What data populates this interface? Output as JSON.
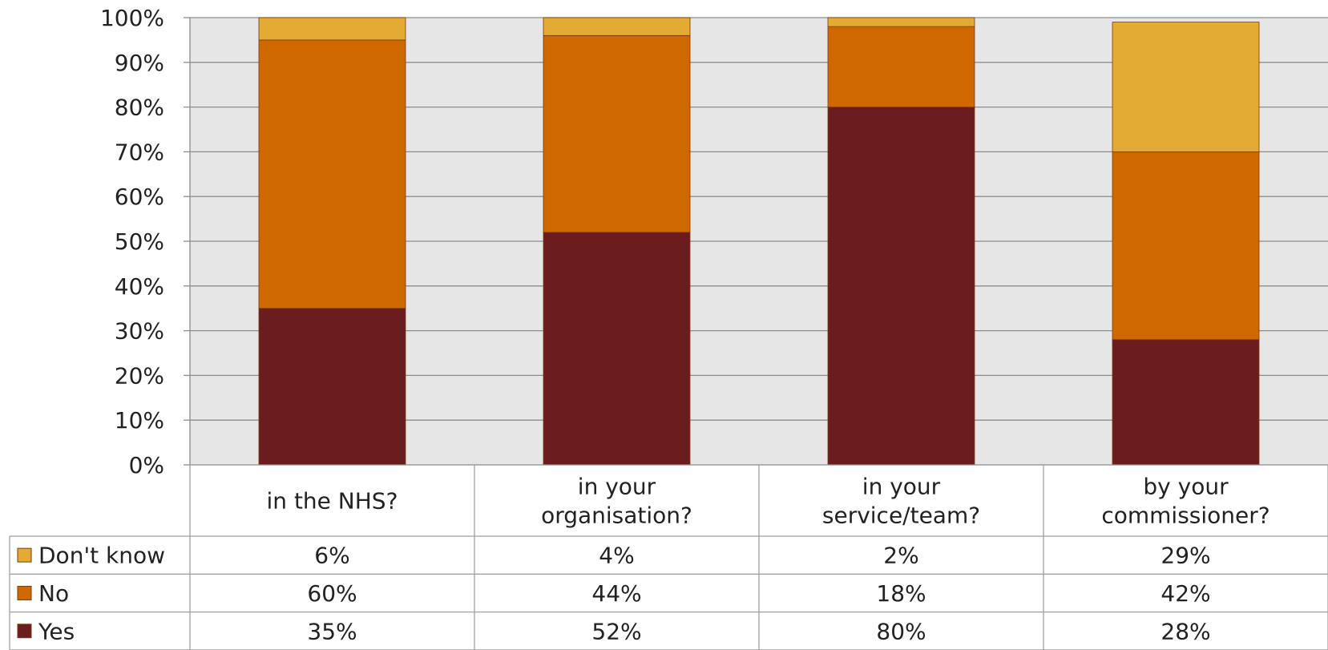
{
  "chart_data": {
    "type": "bar",
    "stacked": true,
    "percent_stacked": true,
    "categories": [
      [
        "in the NHS?"
      ],
      [
        "in your",
        "organisation?"
      ],
      [
        "in your",
        "service/team?"
      ],
      [
        "by your",
        "commissioner?"
      ]
    ],
    "series": [
      {
        "name": "Yes",
        "values": [
          35,
          52,
          80,
          28
        ],
        "labels": [
          "35%",
          "52%",
          "80%",
          "28%"
        ],
        "color": "#6b1c1f"
      },
      {
        "name": "No",
        "values": [
          60,
          44,
          18,
          42
        ],
        "labels": [
          "60%",
          "44%",
          "18%",
          "42%"
        ],
        "color": "#d06800"
      },
      {
        "name": "Don't know",
        "values": [
          6,
          4,
          2,
          29
        ],
        "labels": [
          "6%",
          "4%",
          "2%",
          "29%"
        ],
        "color": "#e3ab33"
      }
    ],
    "table_row_order": [
      "Don't know",
      "No",
      "Yes"
    ],
    "y_ticks": [
      "0%",
      "10%",
      "20%",
      "30%",
      "40%",
      "50%",
      "60%",
      "70%",
      "80%",
      "90%",
      "100%"
    ],
    "ylim": [
      0,
      100
    ],
    "grid": true,
    "legend": "data-table",
    "plot_background": "#e6e6e6",
    "gridline_color": "#8c8c8c"
  }
}
